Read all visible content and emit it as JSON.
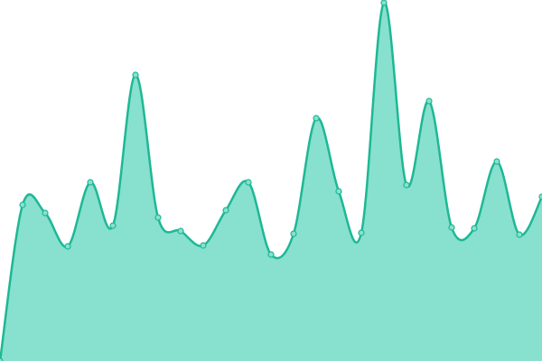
{
  "chart_data": {
    "type": "area",
    "x": [
      0,
      1,
      2,
      3,
      4,
      5,
      6,
      7,
      8,
      9,
      10,
      11,
      12,
      13,
      14,
      15,
      16,
      17,
      18,
      19,
      20,
      21,
      22,
      23,
      24
    ],
    "values": [
      0,
      173,
      164,
      127,
      198,
      150,
      317,
      159,
      144,
      128,
      167,
      198,
      118,
      141,
      269,
      188,
      142,
      397,
      195,
      288,
      148,
      147,
      221,
      140,
      182
    ],
    "xlim": [
      0,
      24
    ],
    "ylim": [
      0,
      400
    ],
    "color": "#1db894",
    "fill": "#88e0cf"
  }
}
